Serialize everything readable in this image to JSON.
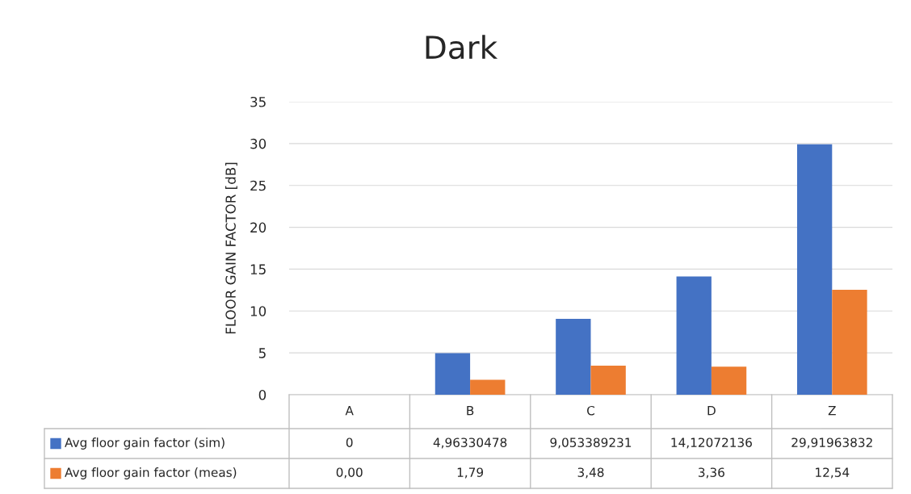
{
  "chart_data": {
    "type": "bar",
    "title": "Dark",
    "ylabel": "FLOOR GAIN FACTOR [dB]",
    "categories": [
      "A",
      "B",
      "C",
      "D",
      "Z"
    ],
    "series": [
      {
        "name": "Avg floor gain factor (sim)",
        "color": "#4472c4",
        "values": [
          0,
          4.96330478,
          9.053389231,
          14.12072136,
          29.91963832
        ],
        "value_labels": [
          "0",
          "4,96330478",
          "9,053389231",
          "14,12072136",
          "29,91963832"
        ]
      },
      {
        "name": "Avg floor gain factor (meas)",
        "color": "#ed7d31",
        "values": [
          0,
          1.79,
          3.48,
          3.36,
          12.54
        ],
        "value_labels": [
          "0,00",
          "1,79",
          "3,48",
          "3,36",
          "12,54"
        ]
      }
    ],
    "ylim": [
      0,
      35
    ],
    "yticks": [
      0,
      5,
      10,
      15,
      20,
      25,
      30,
      35
    ],
    "grid": "y",
    "legend": "bottom"
  }
}
